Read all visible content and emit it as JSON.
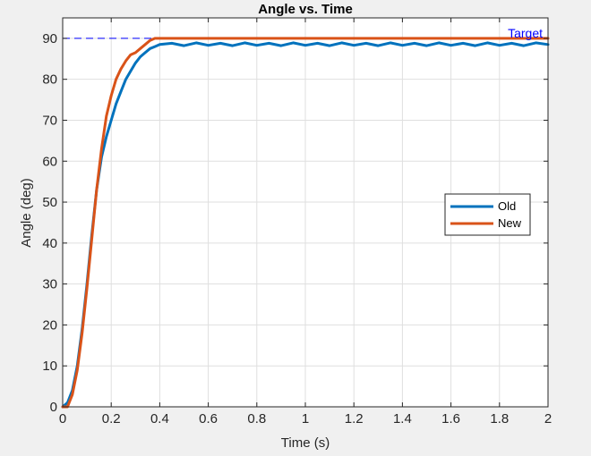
{
  "chart_data": {
    "type": "line",
    "title": "Angle vs. Time",
    "xlabel": "Time (s)",
    "ylabel": "Angle (deg)",
    "xlim": [
      0,
      2
    ],
    "ylim": [
      0,
      95
    ],
    "xticks": [
      0,
      0.2,
      0.4,
      0.6,
      0.8,
      1,
      1.2,
      1.4,
      1.6,
      1.8,
      2
    ],
    "xtick_labels": [
      "0",
      "0.2",
      "0.4",
      "0.6",
      "0.8",
      "1",
      "1.2",
      "1.4",
      "1.6",
      "1.8",
      "2"
    ],
    "yticks": [
      0,
      10,
      20,
      30,
      40,
      50,
      60,
      70,
      80,
      90
    ],
    "ytick_labels": [
      "0",
      "10",
      "20",
      "30",
      "40",
      "50",
      "60",
      "70",
      "80",
      "90"
    ],
    "grid": true,
    "legend_position": "right",
    "target": {
      "label": "Target",
      "value": 90,
      "color": "#0000ff",
      "style": "dashed"
    },
    "series": [
      {
        "name": "Old",
        "color": "#0072bd",
        "x": [
          0,
          0.02,
          0.04,
          0.06,
          0.08,
          0.1,
          0.12,
          0.14,
          0.16,
          0.18,
          0.2,
          0.22,
          0.24,
          0.26,
          0.28,
          0.3,
          0.32,
          0.34,
          0.36,
          0.38,
          0.4,
          0.45,
          0.5,
          0.55,
          0.6,
          0.65,
          0.7,
          0.75,
          0.8,
          0.85,
          0.9,
          0.95,
          1.0,
          1.05,
          1.1,
          1.15,
          1.2,
          1.25,
          1.3,
          1.35,
          1.4,
          1.45,
          1.5,
          1.55,
          1.6,
          1.65,
          1.7,
          1.75,
          1.8,
          1.85,
          1.9,
          1.95,
          2.0
        ],
        "y": [
          0,
          1,
          4,
          10,
          19,
          30,
          42,
          53,
          61,
          66,
          70,
          74,
          77,
          80,
          82,
          84,
          85.5,
          86.5,
          87.5,
          88,
          88.5,
          88.8,
          88.2,
          88.9,
          88.3,
          88.8,
          88.2,
          88.9,
          88.3,
          88.8,
          88.2,
          88.9,
          88.3,
          88.8,
          88.2,
          88.9,
          88.3,
          88.8,
          88.2,
          88.9,
          88.3,
          88.8,
          88.2,
          88.9,
          88.3,
          88.8,
          88.2,
          88.9,
          88.3,
          88.8,
          88.2,
          88.9,
          88.5
        ]
      },
      {
        "name": "New",
        "color": "#d95319",
        "x": [
          0,
          0.02,
          0.04,
          0.06,
          0.08,
          0.1,
          0.12,
          0.14,
          0.16,
          0.18,
          0.2,
          0.22,
          0.24,
          0.26,
          0.28,
          0.3,
          0.32,
          0.34,
          0.36,
          0.38,
          0.4,
          0.5,
          0.6,
          0.8,
          1.0,
          1.2,
          1.4,
          1.6,
          1.8,
          2.0
        ],
        "y": [
          0,
          0,
          3,
          9,
          18,
          29,
          41,
          53,
          63,
          71,
          76,
          80,
          82.5,
          84.5,
          86,
          86.5,
          87.5,
          88.5,
          89.5,
          90,
          90,
          90,
          90,
          90,
          90,
          90,
          90,
          90,
          90,
          90
        ]
      }
    ]
  }
}
